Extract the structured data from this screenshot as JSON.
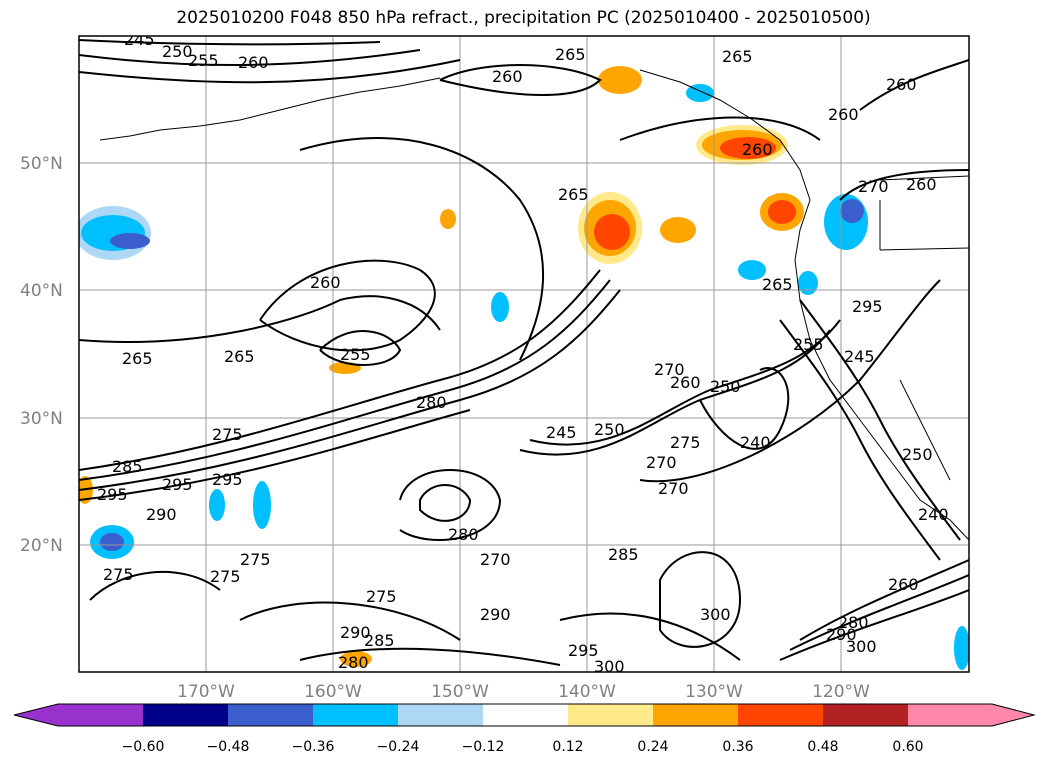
{
  "title": "2025010200 F048 850 hPa refract., precipitation PC (2025010400 - 2025010500)",
  "map": {
    "lat_labels": [
      "50°N",
      "40°N",
      "30°N",
      "20°N"
    ],
    "lon_labels": [
      "170°W",
      "160°W",
      "150°W",
      "140°W",
      "130°W",
      "120°W"
    ],
    "grid": true,
    "contour_labels": [
      "245",
      "250",
      "255",
      "260",
      "260",
      "265",
      "260",
      "265",
      "260",
      "270",
      "265",
      "260",
      "265",
      "255",
      "265",
      "280",
      "275",
      "295",
      "285",
      "295",
      "295",
      "290",
      "275",
      "275",
      "275",
      "275",
      "290",
      "285",
      "280",
      "290",
      "295",
      "300",
      "280",
      "270",
      "285",
      "245",
      "250",
      "270",
      "275",
      "270",
      "270",
      "260",
      "250",
      "240",
      "245",
      "265",
      "255",
      "295",
      "260",
      "290",
      "280",
      "300",
      "240",
      "260",
      "260",
      "250",
      "300"
    ]
  },
  "colorbar": {
    "ticks": [
      "−0.60",
      "−0.48",
      "−0.36",
      "−0.24",
      "−0.12",
      "0.12",
      "0.24",
      "0.36",
      "0.48",
      "0.60"
    ],
    "colors": [
      "#9932cc",
      "#00008b",
      "#3a5fcd",
      "#00bfff",
      "#add8f5",
      "#ffffff",
      "#ffe98a",
      "#ffa500",
      "#ff4500",
      "#b22222",
      "#ff88aa"
    ]
  },
  "colors": {
    "cold_strong": "#3a5fcd",
    "cold": "#00bfff",
    "cold_light": "#add8f5",
    "warm_light": "#ffe98a",
    "warm": "#ffa500",
    "warm_strong": "#ff4500"
  }
}
